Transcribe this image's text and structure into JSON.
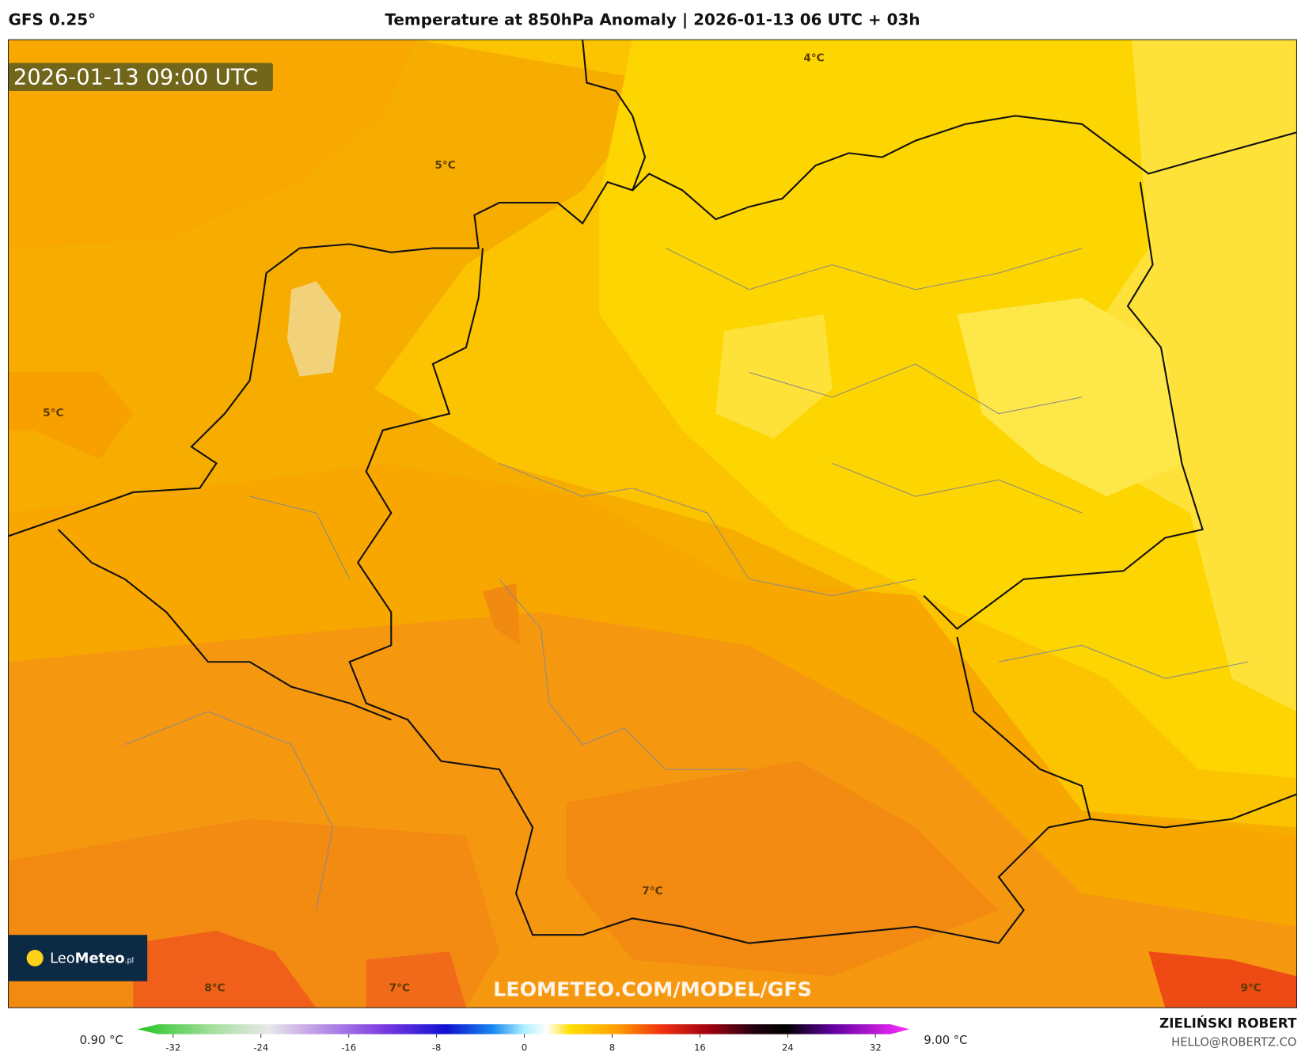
{
  "header": {
    "model": "GFS 0.25°",
    "title": "Temperature at 850hPa Anomaly | 2026-01-13 06 UTC + 03h"
  },
  "valid_time": "2026-01-13 09:00 UTC",
  "contour_labels": [
    "5°C",
    "4°C",
    "5°C",
    "7°C",
    "8°C",
    "7°C",
    "9°C"
  ],
  "logo": {
    "prefix": "Leo",
    "name": "Meteo",
    "suffix": ".pl"
  },
  "watermark": "LEOMETEO.COM/MODEL/GFS",
  "colorbar": {
    "min_label": "0.90 °C",
    "max_label": "9.00 °C",
    "ticks": [
      -32,
      -24,
      -16,
      -8,
      0,
      8,
      16,
      24,
      32
    ]
  },
  "author": {
    "name": "ZIELIŃSKI ROBERT",
    "email": "HELLO@ROBERTZ.CO"
  }
}
